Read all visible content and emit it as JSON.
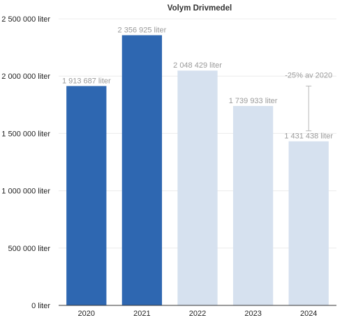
{
  "chart_data": {
    "type": "bar",
    "title": "Volym Drivmedel",
    "xlabel": "",
    "ylabel": "",
    "categories": [
      "2020",
      "2021",
      "2022",
      "2023",
      "2024"
    ],
    "values": [
      1913687,
      2356925,
      2048429,
      1739933,
      1431438
    ],
    "value_labels": [
      "1 913 687 liter",
      "2 356 925 liter",
      "2 048 429 liter",
      "1 739 933 liter",
      "1 431 438 liter"
    ],
    "bar_colors": [
      "#2e67b1",
      "#2e67b1",
      "#d6e1ef",
      "#d6e1ef",
      "#d6e1ef"
    ],
    "ylim": [
      0,
      2500000
    ],
    "y_ticks": [
      0,
      500000,
      1000000,
      1500000,
      2000000,
      2500000
    ],
    "y_tick_labels": [
      "0 liter",
      "500 000 liter",
      "1 000 000 liter",
      "1 500 000 liter",
      "2 000 000 liter",
      "2 500 000 liter"
    ],
    "grid": true,
    "annotation": {
      "text": "-25% av 2020",
      "from_value": 1913687,
      "to_value": 1431438,
      "category": "2024"
    }
  }
}
